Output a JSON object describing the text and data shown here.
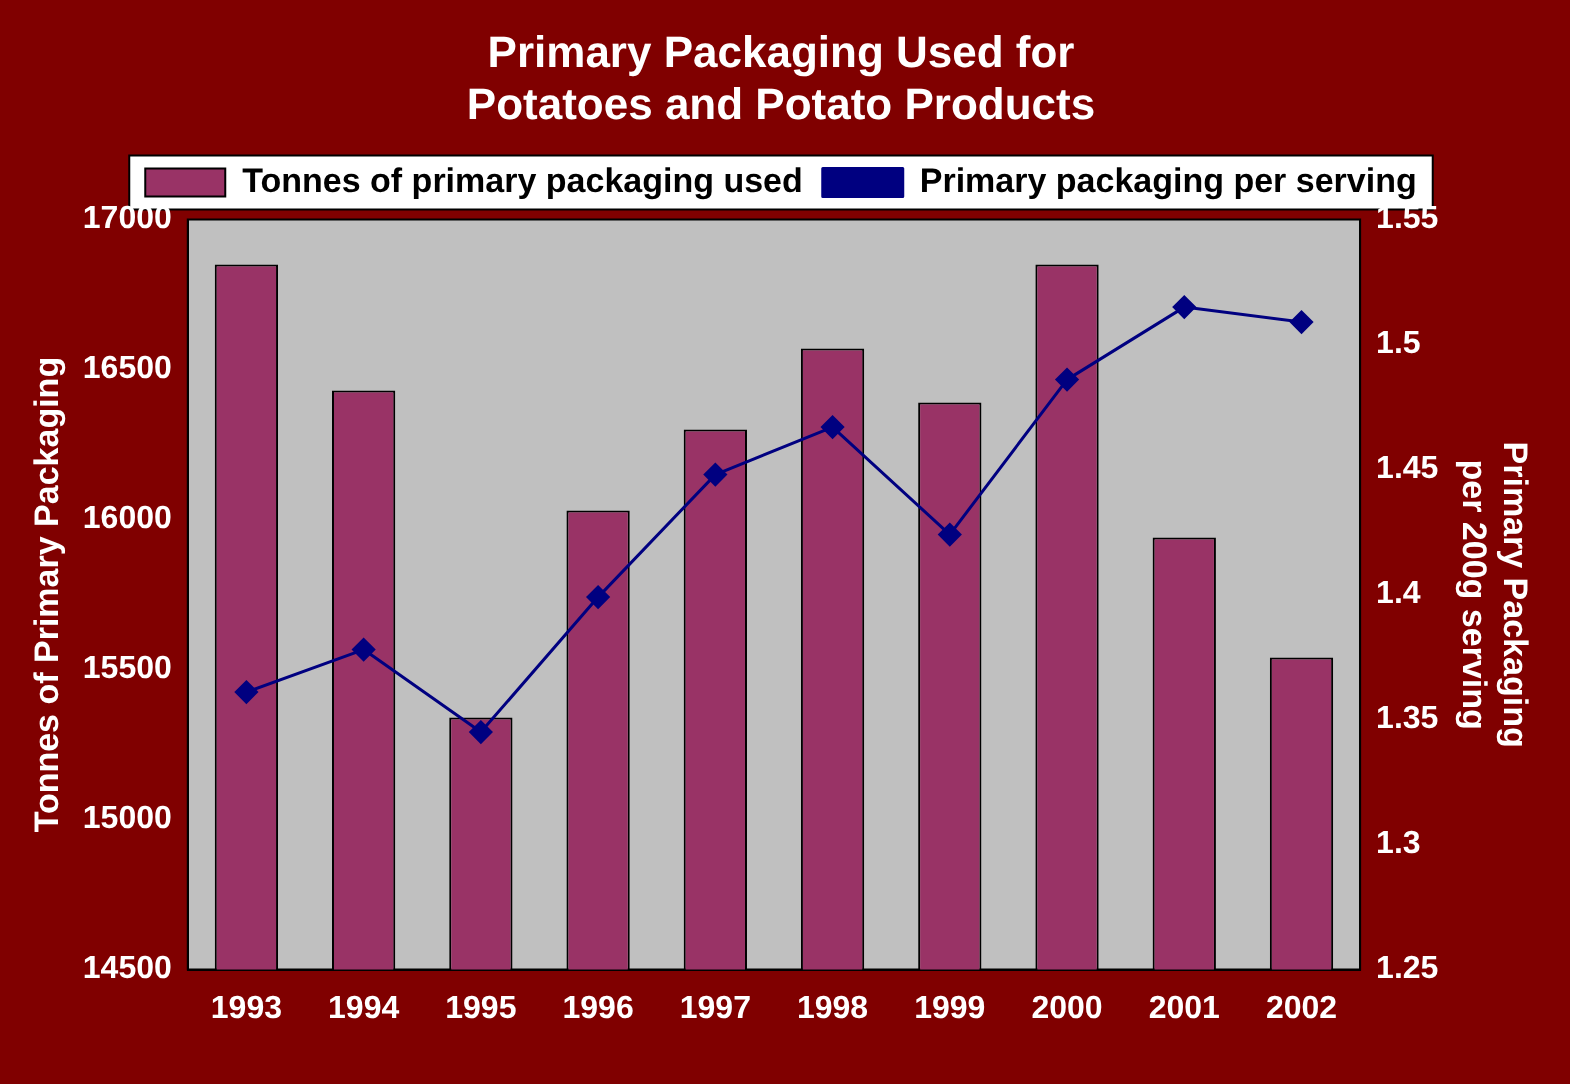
{
  "chart_data": {
    "type": "bar",
    "title": "Primary Packaging Used for\nPotatoes and Potato Products",
    "ylabel": "Tonnes of Primary Packaging",
    "y2label": "Primary Packaging\nper 200g serving",
    "categories": [
      "1993",
      "1994",
      "1995",
      "1996",
      "1997",
      "1998",
      "1999",
      "2000",
      "2001",
      "2002"
    ],
    "series": [
      {
        "name": "Tonnes of primary packaging used",
        "color": "#993366",
        "values": [
          16850,
          16430,
          15340,
          16030,
          16300,
          16570,
          16390,
          16850,
          15940,
          15540
        ]
      },
      {
        "name": "Primary packaging per serving",
        "type": "line",
        "axis": "y2",
        "color": "#000080",
        "marker": "diamond",
        "values": [
          1.361,
          1.378,
          1.345,
          1.399,
          1.448,
          1.467,
          1.424,
          1.486,
          1.515,
          1.509
        ]
      }
    ],
    "ylim": [
      14500,
      17000
    ],
    "yticks": [
      14500,
      15000,
      15500,
      16000,
      16500,
      17000
    ],
    "y2lim": [
      1.25,
      1.55
    ],
    "y2ticks": [
      1.25,
      1.3,
      1.35,
      1.4,
      1.45,
      1.5,
      1.55
    ],
    "grid": false,
    "legend": "top"
  }
}
